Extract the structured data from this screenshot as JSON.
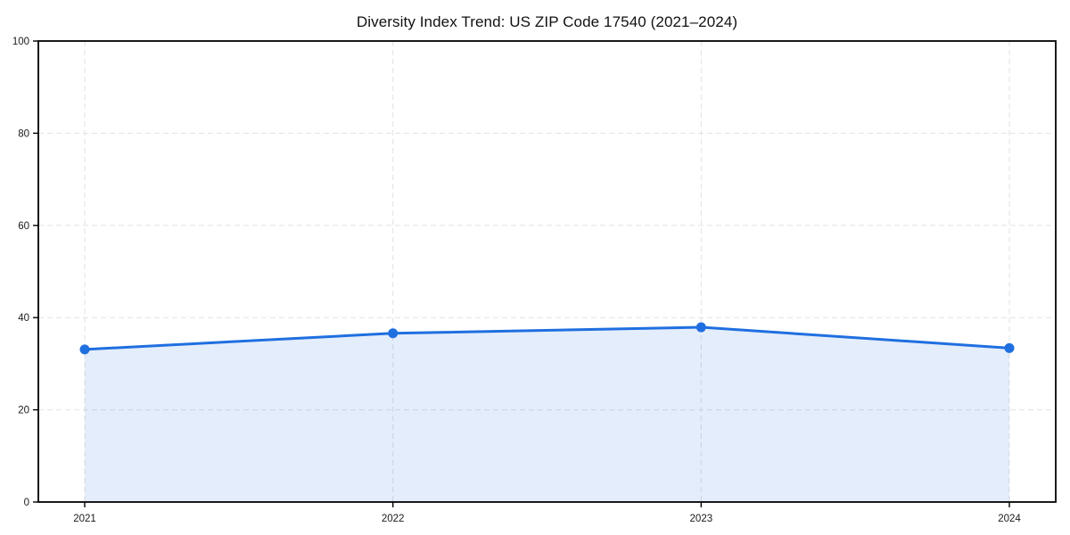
{
  "chart_data": {
    "type": "area",
    "title": "Diversity Index Trend: US ZIP Code 17540 (2021–2024)",
    "x": [
      "2021",
      "2022",
      "2023",
      "2024"
    ],
    "series": [
      {
        "name": "Diversity Index",
        "values": [
          33.1,
          36.6,
          37.9,
          33.4
        ]
      }
    ],
    "xlabel": "",
    "ylabel": "",
    "ylim": [
      0,
      100
    ],
    "yticks": [
      0,
      20,
      40,
      60,
      80,
      100
    ],
    "grid": true,
    "grid_style": "dashed",
    "legend_position": "none",
    "marker": "circle",
    "colors": {
      "line": "#1f6fe0",
      "marker": "#1f6fe0",
      "fill": "rgba(31,111,224,0.12)",
      "grid": "#e2e2e2",
      "spine": "#000000",
      "text": "#1a1a1a",
      "background": "#ffffff"
    }
  }
}
